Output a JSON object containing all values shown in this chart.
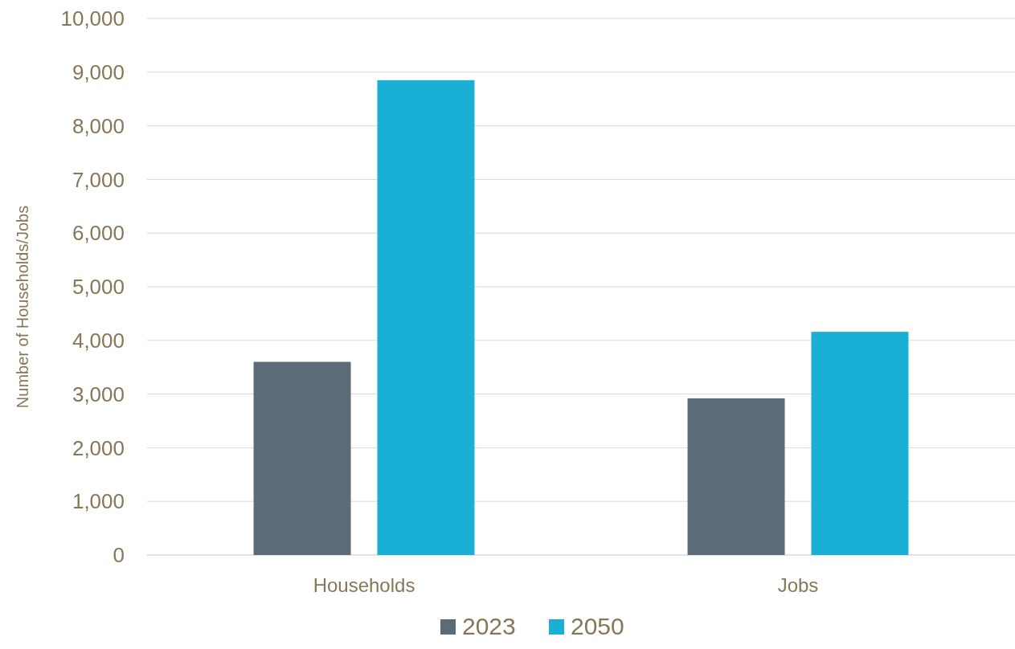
{
  "chart_data": {
    "type": "bar",
    "ylabel": "Number of Households/Jobs",
    "categories": [
      "Households",
      "Jobs"
    ],
    "series": [
      {
        "name": "2023",
        "color": "#5b6b77",
        "values": [
          3600,
          2920
        ]
      },
      {
        "name": "2050",
        "color": "#1ab0d5",
        "values": [
          8850,
          4160
        ]
      }
    ],
    "ylim": [
      0,
      10000
    ],
    "yticks": [
      {
        "value": 0,
        "label": "0"
      },
      {
        "value": 1000,
        "label": "1,000"
      },
      {
        "value": 2000,
        "label": "2,000"
      },
      {
        "value": 3000,
        "label": "3,000"
      },
      {
        "value": 4000,
        "label": "4,000"
      },
      {
        "value": 5000,
        "label": "5,000"
      },
      {
        "value": 6000,
        "label": "6,000"
      },
      {
        "value": 7000,
        "label": "7,000"
      },
      {
        "value": 8000,
        "label": "8,000"
      },
      {
        "value": 9000,
        "label": "9,000"
      },
      {
        "value": 10000,
        "label": "10,000"
      }
    ],
    "grid": "y",
    "legend": "bottom"
  }
}
